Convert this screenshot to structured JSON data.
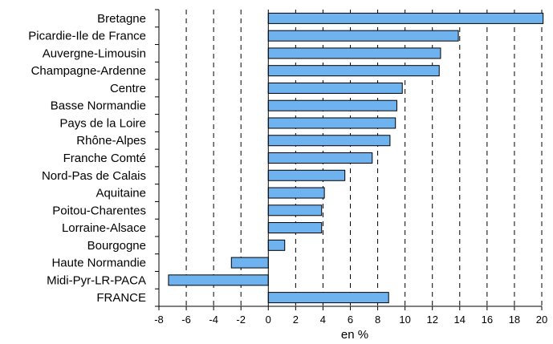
{
  "chart_data": {
    "type": "bar",
    "orientation": "horizontal",
    "categories": [
      "Bretagne",
      "Picardie-Ile de France",
      "Auvergne-Limousin",
      "Champagne-Ardenne",
      "Centre",
      "Basse Normandie",
      "Pays de la Loire",
      "Rhône-Alpes",
      "Franche Comté",
      "Nord-Pas de Calais",
      "Aquitaine",
      "Poitou-Charentes",
      "Lorraine-Alsace",
      "Bourgogne",
      "Haute Normandie",
      "Midi-Pyr-LR-PACA",
      "FRANCE"
    ],
    "values": [
      20.1,
      13.9,
      12.6,
      12.5,
      9.8,
      9.4,
      9.3,
      8.9,
      7.6,
      5.6,
      4.1,
      3.9,
      3.9,
      1.2,
      -2.7,
      -7.3,
      8.8
    ],
    "xlabel": "en %",
    "xlim": [
      -8,
      20
    ],
    "xticks": [
      "-8",
      "-6",
      "-4",
      "-2",
      "0",
      "2",
      "4",
      "6",
      "8",
      "10",
      "12",
      "14",
      "16",
      "18",
      "20"
    ],
    "grid": "vertical dashed",
    "bar_color": "#6fb2f0",
    "bar_edge_color": "#000000"
  }
}
